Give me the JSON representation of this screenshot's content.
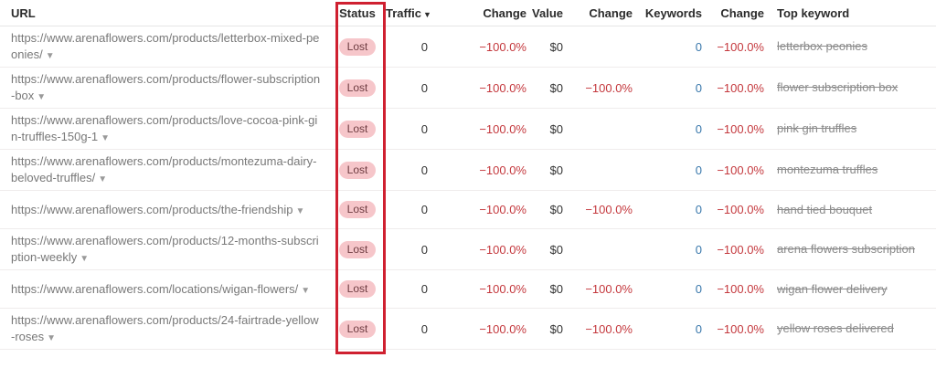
{
  "colors": {
    "annotation_red": "#cf2030",
    "badge_background": "#f6c6ca",
    "badge_text": "#6e3c41",
    "negative_red": "#c4383d",
    "link_blue": "#3877ab"
  },
  "table": {
    "columns": [
      {
        "key": "url",
        "label": "URL"
      },
      {
        "key": "status",
        "label": "Status"
      },
      {
        "key": "traffic",
        "label": "Traffic",
        "sort_icon": "▼"
      },
      {
        "key": "traffic_change",
        "label": "Change"
      },
      {
        "key": "value",
        "label": "Value"
      },
      {
        "key": "value_change",
        "label": "Change"
      },
      {
        "key": "keywords",
        "label": "Keywords"
      },
      {
        "key": "keywords_change",
        "label": "Change"
      },
      {
        "key": "top_keyword",
        "label": "Top keyword"
      }
    ],
    "rows": [
      {
        "url": "https://www.arenaflowers.com/products/letterbox-mixed-peonies/",
        "status": "Lost",
        "traffic": "0",
        "traffic_change": "−100.0%",
        "value": "$0",
        "value_change": "",
        "keywords": "0",
        "keywords_change": "−100.0%",
        "top_keyword": "letterbox peonies"
      },
      {
        "url": "https://www.arenaflowers.com/products/flower-subscription-box",
        "status": "Lost",
        "traffic": "0",
        "traffic_change": "−100.0%",
        "value": "$0",
        "value_change": "−100.0%",
        "keywords": "0",
        "keywords_change": "−100.0%",
        "top_keyword": "flower subscription box"
      },
      {
        "url": "https://www.arenaflowers.com/products/love-cocoa-pink-gin-truffles-150g-1",
        "status": "Lost",
        "traffic": "0",
        "traffic_change": "−100.0%",
        "value": "$0",
        "value_change": "",
        "keywords": "0",
        "keywords_change": "−100.0%",
        "top_keyword": "pink gin truffles"
      },
      {
        "url": "https://www.arenaflowers.com/products/montezuma-dairy-beloved-truffles/",
        "status": "Lost",
        "traffic": "0",
        "traffic_change": "−100.0%",
        "value": "$0",
        "value_change": "",
        "keywords": "0",
        "keywords_change": "−100.0%",
        "top_keyword": "montezuma truffles"
      },
      {
        "url": "https://www.arenaflowers.com/products/the-friendship",
        "status": "Lost",
        "traffic": "0",
        "traffic_change": "−100.0%",
        "value": "$0",
        "value_change": "−100.0%",
        "keywords": "0",
        "keywords_change": "−100.0%",
        "top_keyword": "hand tied bouquet"
      },
      {
        "url": "https://www.arenaflowers.com/products/12-months-subscription-weekly",
        "status": "Lost",
        "traffic": "0",
        "traffic_change": "−100.0%",
        "value": "$0",
        "value_change": "",
        "keywords": "0",
        "keywords_change": "−100.0%",
        "top_keyword": "arena flowers subscription"
      },
      {
        "url": "https://www.arenaflowers.com/locations/wigan-flowers/",
        "status": "Lost",
        "traffic": "0",
        "traffic_change": "−100.0%",
        "value": "$0",
        "value_change": "−100.0%",
        "keywords": "0",
        "keywords_change": "−100.0%",
        "top_keyword": "wigan flower delivery"
      },
      {
        "url": "https://www.arenaflowers.com/products/24-fairtrade-yellow-roses",
        "status": "Lost",
        "traffic": "0",
        "traffic_change": "−100.0%",
        "value": "$0",
        "value_change": "−100.0%",
        "keywords": "0",
        "keywords_change": "−100.0%",
        "top_keyword": "yellow roses delivered"
      }
    ]
  }
}
